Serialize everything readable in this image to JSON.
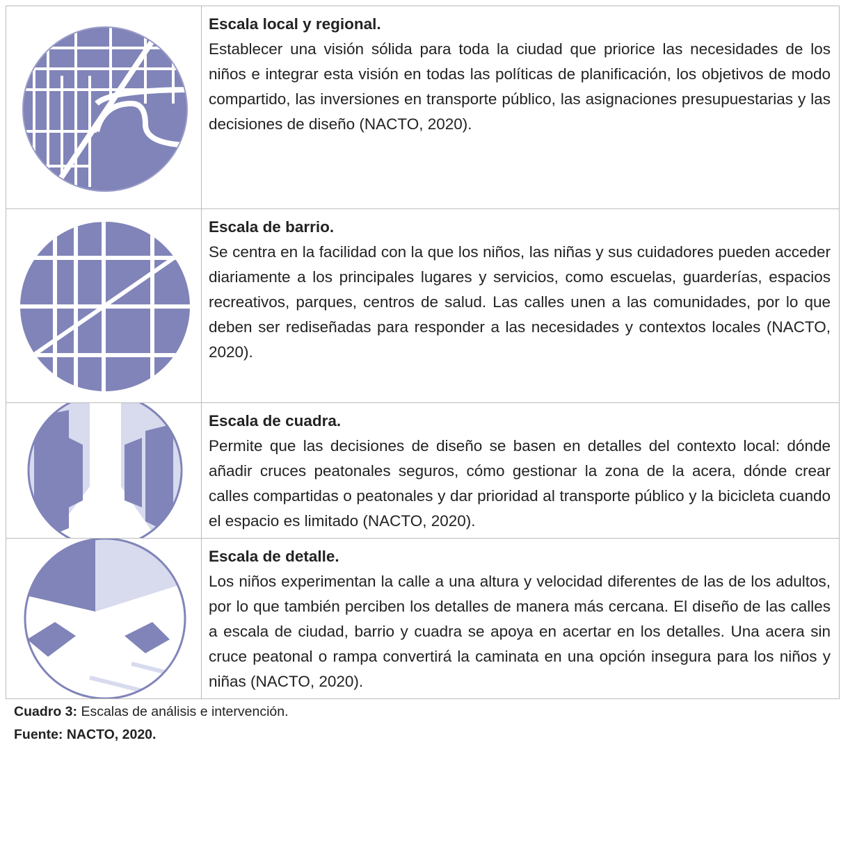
{
  "table": {
    "rows": [
      {
        "title": "Escala local y regional.",
        "text": "Establecer una visión sólida para toda la ciudad que priorice las necesidades de los niños e integrar esta visión en todas las políticas de planificación, los objetivos de modo compartido, las inversiones en transporte público, las asignaciones presupuestarias y las decisiones de diseño (NACTO, 2020)."
      },
      {
        "title": "Escala de barrio.",
        "text": "Se centra en la facilidad con la que los niños, las niñas y sus cuidadores pueden acceder diariamente a los principales lugares y servicios, como escuelas, guarderías, espacios recreativos, parques, centros de salud. Las calles unen a las comunidades, por lo que deben ser rediseñadas para responder a las necesidades y contextos locales (NACTO, 2020)."
      },
      {
        "title": "Escala de cuadra.",
        "text": "Permite que las decisiones de diseño se basen en detalles del contexto local: dónde añadir cruces peatonales seguros, cómo gestionar la zona de la acera, dónde crear calles compartidas o peatonales y dar prioridad al transporte público y la bicicleta cuando el espacio es limitado (NACTO, 2020)."
      },
      {
        "title": "Escala de detalle.",
        "text": "Los niños experimentan la calle a una altura y velocidad diferentes de las de los adultos, por lo que también perciben los detalles de manera más cercana. El diseño de las calles a escala de ciudad, barrio y cuadra se apoya en acertar en los detalles. Una acera sin cruce peatonal o rampa convertirá la caminata en una opción insegura para los niños y niñas (NACTO, 2020)."
      }
    ]
  },
  "caption": {
    "label": "Cuadro 3:",
    "text": "Escalas de análisis e intervención.",
    "source": "Fuente: NACTO, 2020."
  }
}
